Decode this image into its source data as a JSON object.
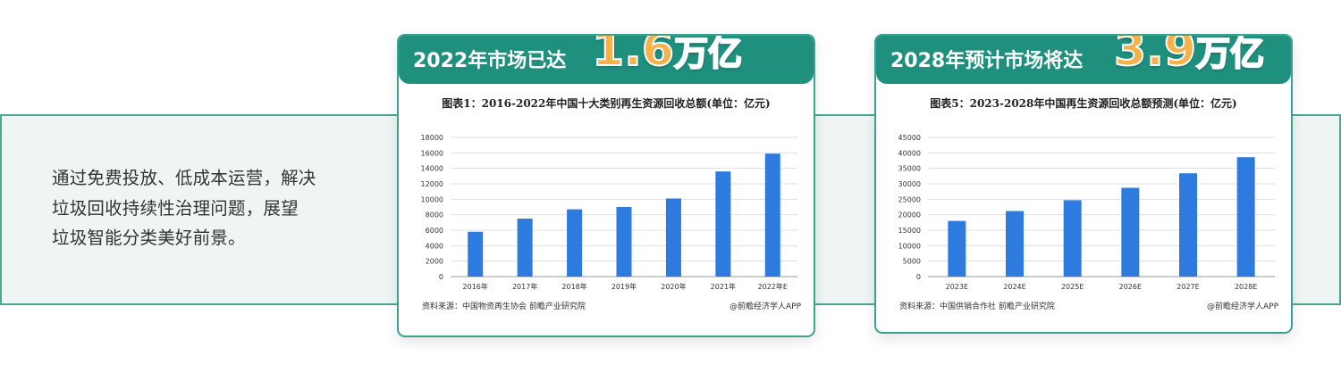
{
  "intro_lines": [
    "通过免费投放、低成本运营，解决",
    "垃圾回收持续性治理问题，展望",
    "垃圾智能分类美好前景。"
  ],
  "left_panel": {
    "heading_prefix": "2022年市场已达",
    "heading_number": "1.6",
    "heading_unit": "万亿"
  },
  "right_panel": {
    "heading_prefix": "2028年预计市场将达",
    "heading_number": "3.9",
    "heading_unit": "万亿"
  },
  "colors": {
    "bar": "#2e7be0",
    "header": "#1f8f7e",
    "accent": "#f6b24a",
    "border": "#3aa28f"
  },
  "chart_data": [
    {
      "type": "bar",
      "title": "图表1：2016-2022年中国十大类别再生资源回收总额(单位：亿元)",
      "categories": [
        "2016年",
        "2017年",
        "2018年",
        "2019年",
        "2020年",
        "2021年",
        "2022年E"
      ],
      "values": [
        5800,
        7500,
        8700,
        9000,
        10100,
        13600,
        15900
      ],
      "ylim": [
        0,
        18000
      ],
      "yticks": [
        0,
        2000,
        4000,
        6000,
        8000,
        10000,
        12000,
        14000,
        16000,
        18000
      ],
      "source": "资料来源：中国物资再生协会 前瞻产业研究院",
      "credit": "@前瞻经济学人APP",
      "grid": true,
      "xlabel": "",
      "ylabel": ""
    },
    {
      "type": "bar",
      "title": "图表5：2023-2028年中国再生资源回收总额预测(单位：亿元)",
      "categories": [
        "2023E",
        "2024E",
        "2025E",
        "2026E",
        "2027E",
        "2028E"
      ],
      "values": [
        18000,
        21200,
        24700,
        28700,
        33400,
        38600
      ],
      "ylim": [
        0,
        45000
      ],
      "yticks": [
        0,
        5000,
        10000,
        15000,
        20000,
        25000,
        30000,
        35000,
        40000,
        45000
      ],
      "source": "资料来源：中国供销合作社 前瞻产业研究院",
      "credit": "@前瞻经济学人APP",
      "grid": true,
      "xlabel": "",
      "ylabel": ""
    }
  ]
}
